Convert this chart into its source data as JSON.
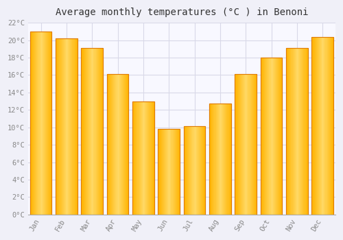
{
  "title": "Average monthly temperatures (°C ) in Benoni",
  "months": [
    "Jan",
    "Feb",
    "Mar",
    "Apr",
    "May",
    "Jun",
    "Jul",
    "Aug",
    "Sep",
    "Oct",
    "Nov",
    "Dec"
  ],
  "values": [
    21.0,
    20.2,
    19.1,
    16.1,
    13.0,
    9.8,
    10.1,
    12.7,
    16.1,
    18.0,
    19.1,
    20.4
  ],
  "bar_color": "#FFB400",
  "bar_color_light": "#FFD966",
  "bar_edge_color": "#E07B00",
  "background_color": "#f0f0f8",
  "plot_background_color": "#f8f8ff",
  "grid_color": "#d8d8e8",
  "ylim": [
    0,
    22
  ],
  "yticks": [
    0,
    2,
    4,
    6,
    8,
    10,
    12,
    14,
    16,
    18,
    20,
    22
  ],
  "ytick_labels": [
    "0°C",
    "2°C",
    "4°C",
    "6°C",
    "8°C",
    "10°C",
    "12°C",
    "14°C",
    "16°C",
    "18°C",
    "20°C",
    "22°C"
  ],
  "title_fontsize": 10,
  "tick_fontsize": 7.5,
  "tick_color": "#888888",
  "title_color": "#333333",
  "font_family": "monospace",
  "bar_width": 0.85
}
